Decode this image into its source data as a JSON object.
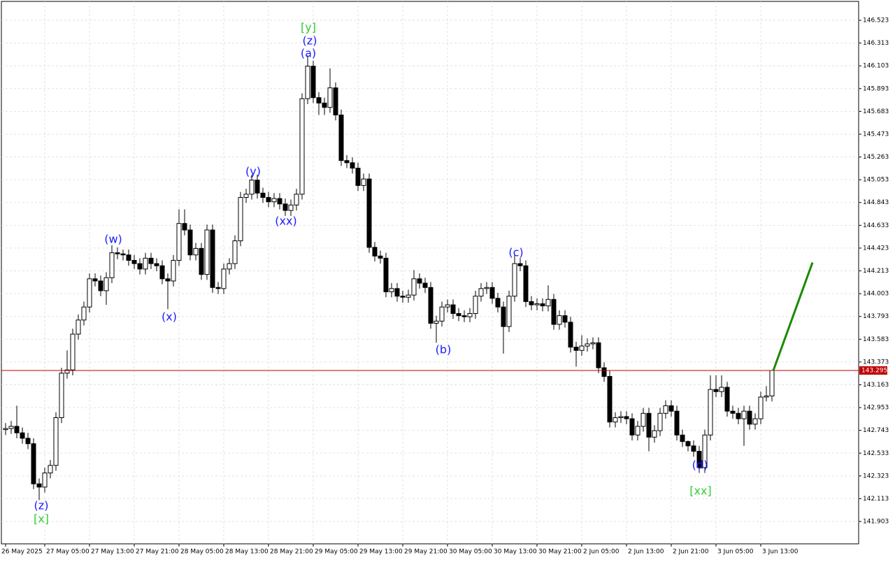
{
  "chart_data": {
    "type": "candlestick",
    "categories": [
      "26 May 2025",
      null,
      null,
      null,
      null,
      null,
      null,
      "27 May 05:00",
      null,
      null,
      null,
      null,
      null,
      null,
      null,
      "27 May 13:00",
      null,
      null,
      null,
      null,
      null,
      null,
      null,
      "27 May 21:00",
      null,
      null,
      null,
      null,
      null,
      null,
      null,
      "28 May 05:00",
      null,
      null,
      null,
      null,
      null,
      null,
      null,
      "28 May 13:00",
      null,
      null,
      null,
      null,
      null,
      null,
      null,
      "28 May 21:00",
      null,
      null,
      null,
      null,
      null,
      null,
      null,
      "29 May 05:00",
      null,
      null,
      null,
      null,
      null,
      null,
      null,
      "29 May 13:00",
      null,
      null,
      null,
      null,
      null,
      null,
      null,
      "29 May 21:00",
      null,
      null,
      null,
      null,
      null,
      null,
      null,
      "30 May 05:00",
      null,
      null,
      null,
      null,
      null,
      null,
      null,
      "30 May 13:00",
      null,
      null,
      null,
      null,
      null,
      null,
      null,
      "30 May 21:00",
      null,
      null,
      null,
      null,
      null,
      null,
      null,
      "2 Jun 05:00",
      null,
      null,
      null,
      null,
      null,
      null,
      null,
      "2 Jun 13:00",
      null,
      null,
      null,
      null,
      null,
      null,
      null,
      "2 Jun 21:00",
      null,
      null,
      null,
      null,
      null,
      null,
      null,
      "3 Jun 05:00",
      null,
      null,
      null,
      null,
      null,
      null,
      null,
      "3 Jun 13:00",
      null,
      null
    ],
    "open": [
      142.75,
      142.76,
      142.78,
      142.72,
      142.67,
      142.62,
      142.25,
      142.22,
      142.35,
      142.42,
      142.86,
      143.27,
      143.3,
      143.63,
      143.76,
      143.88,
      144.14,
      144.12,
      144.03,
      144.15,
      144.38,
      144.37,
      144.36,
      144.31,
      144.28,
      144.23,
      144.33,
      144.28,
      144.26,
      144.14,
      144.12,
      144.31,
      144.65,
      144.59,
      144.36,
      144.42,
      144.18,
      144.59,
      144.06,
      144.05,
      144.23,
      144.28,
      144.49,
      144.89,
      144.92,
      145.05,
      144.93,
      144.89,
      144.85,
      144.88,
      144.83,
      144.77,
      144.82,
      144.92,
      145.8,
      146.1,
      145.81,
      145.76,
      145.72,
      145.9,
      145.65,
      145.23,
      145.21,
      145.16,
      145.0,
      145.06,
      144.43,
      144.35,
      144.33,
      144.02,
      144.05,
      143.98,
      143.97,
      143.99,
      144.14,
      144.1,
      144.06,
      143.73,
      143.75,
      143.88,
      143.9,
      143.82,
      143.8,
      143.79,
      143.82,
      143.98,
      144.05,
      144.06,
      143.96,
      143.88,
      143.7,
      143.98,
      144.28,
      144.26,
      143.93,
      143.9,
      143.91,
      143.89,
      143.95,
      143.72,
      143.8,
      143.74,
      143.51,
      143.48,
      143.52,
      143.54,
      143.55,
      143.32,
      143.24,
      142.82,
      142.86,
      142.87,
      142.85,
      142.7,
      142.78,
      142.9,
      142.68,
      142.74,
      142.9,
      142.97,
      142.92,
      142.7,
      142.64,
      142.6,
      142.55,
      142.4,
      142.7,
      143.12,
      143.1,
      143.14,
      142.92,
      142.9,
      142.85,
      142.92,
      142.8,
      142.85,
      143.05,
      143.06
    ],
    "high": [
      142.81,
      142.83,
      142.97,
      142.77,
      142.72,
      142.67,
      142.3,
      142.4,
      142.47,
      142.91,
      143.32,
      143.48,
      143.68,
      143.81,
      143.93,
      144.19,
      144.19,
      144.17,
      144.2,
      144.45,
      144.43,
      144.41,
      144.41,
      144.36,
      144.33,
      144.38,
      144.38,
      144.33,
      144.31,
      144.19,
      144.36,
      144.78,
      144.78,
      144.64,
      144.47,
      144.47,
      144.64,
      144.64,
      144.11,
      144.28,
      144.33,
      144.54,
      144.94,
      144.97,
      145.1,
      145.1,
      144.98,
      144.94,
      144.93,
      144.93,
      144.88,
      144.87,
      144.97,
      145.85,
      146.2,
      146.15,
      145.86,
      145.81,
      146.08,
      145.95,
      145.7,
      145.28,
      145.26,
      145.21,
      145.11,
      145.11,
      144.48,
      144.4,
      144.38,
      144.1,
      144.1,
      144.03,
      144.04,
      144.22,
      144.19,
      144.15,
      144.11,
      143.8,
      143.93,
      143.95,
      143.95,
      143.87,
      143.85,
      143.87,
      144.03,
      144.1,
      144.11,
      144.11,
      144.01,
      143.93,
      144.03,
      144.36,
      144.33,
      144.31,
      143.98,
      143.96,
      143.96,
      144.08,
      144.0,
      143.85,
      143.85,
      143.79,
      143.56,
      143.62,
      143.59,
      143.6,
      143.6,
      143.37,
      143.29,
      142.91,
      142.92,
      142.92,
      142.9,
      142.83,
      142.95,
      142.95,
      142.79,
      142.95,
      143.02,
      143.02,
      142.97,
      142.75,
      142.65,
      142.65,
      142.6,
      142.75,
      143.25,
      143.25,
      143.25,
      143.19,
      142.97,
      142.95,
      142.97,
      142.97,
      142.9,
      143.1,
      143.15,
      143.3
    ],
    "low": [
      142.7,
      142.71,
      142.67,
      142.62,
      142.57,
      142.2,
      142.1,
      142.17,
      142.3,
      142.37,
      142.81,
      143.22,
      143.25,
      143.58,
      143.71,
      143.83,
      144.07,
      143.98,
      143.9,
      144.1,
      144.32,
      144.31,
      144.26,
      144.23,
      144.18,
      144.18,
      144.23,
      144.21,
      144.09,
      143.86,
      144.07,
      144.26,
      144.54,
      144.31,
      144.31,
      144.13,
      144.13,
      144.01,
      144.0,
      144.0,
      144.18,
      144.23,
      144.44,
      144.84,
      144.87,
      144.88,
      144.84,
      144.8,
      144.8,
      144.78,
      144.72,
      144.72,
      144.77,
      144.87,
      145.75,
      145.76,
      145.65,
      145.65,
      145.67,
      145.6,
      145.18,
      145.16,
      145.11,
      144.95,
      144.95,
      144.38,
      144.3,
      144.28,
      143.97,
      143.97,
      143.93,
      143.92,
      143.92,
      143.94,
      144.05,
      144.01,
      143.68,
      143.55,
      143.7,
      143.83,
      143.77,
      143.75,
      143.74,
      143.74,
      143.77,
      143.93,
      144.0,
      143.91,
      143.83,
      143.45,
      143.65,
      143.93,
      144.21,
      143.88,
      143.85,
      143.85,
      143.84,
      143.84,
      143.67,
      143.67,
      143.69,
      143.46,
      143.33,
      143.43,
      143.47,
      143.49,
      143.27,
      143.19,
      142.77,
      142.77,
      142.81,
      142.8,
      142.65,
      142.65,
      142.73,
      142.55,
      142.63,
      142.69,
      142.85,
      142.87,
      142.65,
      142.59,
      142.55,
      142.5,
      142.35,
      142.35,
      142.65,
      143.05,
      143.05,
      142.87,
      142.85,
      142.8,
      142.6,
      142.75,
      142.75,
      142.8,
      143.01,
      143.01
    ],
    "close": [
      142.76,
      142.78,
      142.72,
      142.67,
      142.62,
      142.25,
      142.22,
      142.35,
      142.42,
      142.86,
      143.27,
      143.3,
      143.63,
      143.76,
      143.88,
      144.14,
      144.12,
      144.03,
      144.15,
      144.38,
      144.37,
      144.36,
      144.31,
      144.28,
      144.23,
      144.33,
      144.28,
      144.26,
      144.14,
      144.12,
      144.31,
      144.65,
      144.59,
      144.36,
      144.42,
      144.18,
      144.59,
      144.06,
      144.05,
      144.23,
      144.28,
      144.49,
      144.89,
      144.92,
      145.05,
      144.93,
      144.89,
      144.85,
      144.88,
      144.83,
      144.77,
      144.82,
      144.92,
      145.8,
      146.1,
      145.81,
      145.76,
      145.72,
      145.9,
      145.65,
      145.23,
      145.21,
      145.16,
      145.0,
      145.06,
      144.43,
      144.35,
      144.33,
      144.02,
      144.05,
      143.98,
      143.97,
      143.99,
      144.14,
      144.1,
      144.06,
      143.73,
      143.75,
      143.88,
      143.9,
      143.82,
      143.8,
      143.79,
      143.82,
      143.98,
      144.05,
      144.06,
      143.96,
      143.88,
      143.7,
      143.98,
      144.28,
      144.26,
      143.93,
      143.9,
      143.91,
      143.89,
      143.95,
      143.72,
      143.8,
      143.74,
      143.51,
      143.48,
      143.52,
      143.54,
      143.55,
      143.32,
      143.24,
      142.82,
      142.86,
      142.87,
      142.85,
      142.7,
      142.78,
      142.9,
      142.68,
      142.74,
      142.9,
      142.97,
      142.92,
      142.7,
      142.64,
      142.6,
      142.55,
      142.4,
      142.7,
      143.12,
      143.1,
      143.14,
      142.92,
      142.9,
      142.85,
      142.92,
      142.8,
      142.85,
      143.05,
      143.06,
      143.295
    ],
    "up_color": "#ffffff",
    "down_color": "#000000",
    "ylim": [
      141.697,
      146.697
    ],
    "yticks": [
      146.523,
      146.313,
      146.103,
      145.893,
      145.683,
      145.473,
      145.263,
      145.053,
      144.843,
      144.633,
      144.423,
      144.213,
      144.003,
      143.793,
      143.583,
      143.373,
      143.163,
      142.953,
      142.743,
      142.533,
      142.323,
      142.113,
      141.903
    ],
    "grid": true,
    "current_price": 143.295,
    "current_price_color": "#c00000",
    "projection": {
      "color": "#1a8a00",
      "values": [
        143.295,
        144.29
      ]
    },
    "annotations": [
      {
        "text": "[y]",
        "color": "#33cc33"
      },
      {
        "text": "(z)",
        "color": "#1a1aff"
      },
      {
        "text": "(a)",
        "color": "#1a1aff"
      },
      {
        "text": "(w)",
        "color": "#1a1aff"
      },
      {
        "text": "(x)",
        "color": "#1a1aff"
      },
      {
        "text": "(y)",
        "color": "#1a1aff"
      },
      {
        "text": "(xx)",
        "color": "#1a1aff"
      },
      {
        "text": "(b)",
        "color": "#1a1aff"
      },
      {
        "text": "(c)",
        "color": "#1a1aff"
      },
      {
        "text": "(d)",
        "color": "#1a1aff"
      },
      {
        "text": "[xx]",
        "color": "#33cc33"
      },
      {
        "text": "(z)",
        "color": "#1a1aff"
      },
      {
        "text": "[x]",
        "color": "#33cc33"
      }
    ]
  }
}
